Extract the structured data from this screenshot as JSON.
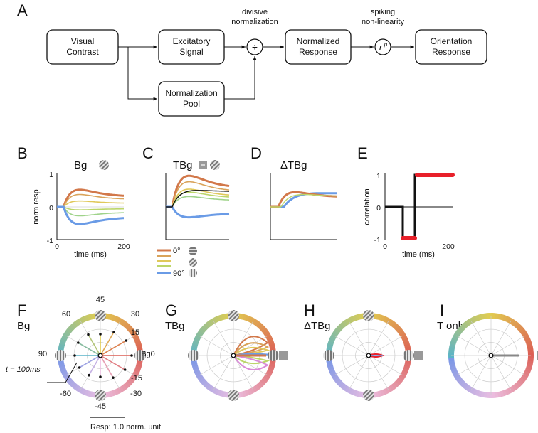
{
  "panel_A": {
    "letter": "A",
    "boxes": {
      "visual": [
        "Visual",
        "Contrast"
      ],
      "excitatory": [
        "Excitatory",
        "Signal"
      ],
      "norm_pool": [
        "Normalization",
        "Pool"
      ],
      "normalized": [
        "Normalized",
        "Response"
      ],
      "orientation": [
        "Orientation",
        "Response"
      ]
    },
    "div_label": [
      "divisive",
      "normalization"
    ],
    "spike_label": [
      "spiking",
      "non-linearity"
    ],
    "div_symbol": "÷",
    "power_base": "r",
    "power_exp": "p"
  },
  "panel_B": {
    "letter": "B",
    "title": "Bg",
    "ylabel": "norm resp",
    "xlabel": "time (ms)",
    "yticks": [
      "1",
      "0",
      "-1"
    ],
    "xticks": [
      "0",
      "200"
    ]
  },
  "panel_C": {
    "letter": "C",
    "title": "TBg"
  },
  "panel_D": {
    "letter": "D",
    "title": "ΔTBg"
  },
  "panel_E": {
    "letter": "E",
    "ylabel": "correlation",
    "xlabel": "time (ms)",
    "yticks": [
      "1",
      "0",
      "-1"
    ],
    "xticks": [
      "0",
      "200"
    ]
  },
  "legend": {
    "top": "0°",
    "bottom": "90°"
  },
  "panel_F": {
    "letter": "F",
    "title": "Bg",
    "angles": {
      "a45": "45",
      "a60": "60",
      "a30": "30",
      "a15": "15",
      "a90": "90",
      "a0": "Bg0",
      "am15": "-15",
      "am60": "-60",
      "am30": "-30",
      "am45": "-45"
    },
    "time_note": "t = 100ms"
  },
  "panel_G": {
    "letter": "G",
    "title": "TBg"
  },
  "panel_H": {
    "letter": "H",
    "title": "ΔTBg"
  },
  "panel_I": {
    "letter": "I",
    "title": "T only"
  },
  "scale_label": "Resp: 1.0 norm. unit",
  "colors": {
    "orange": "#d2784a",
    "blue": "#6a9be6",
    "red": "#e8202a",
    "black": "#111111"
  }
}
